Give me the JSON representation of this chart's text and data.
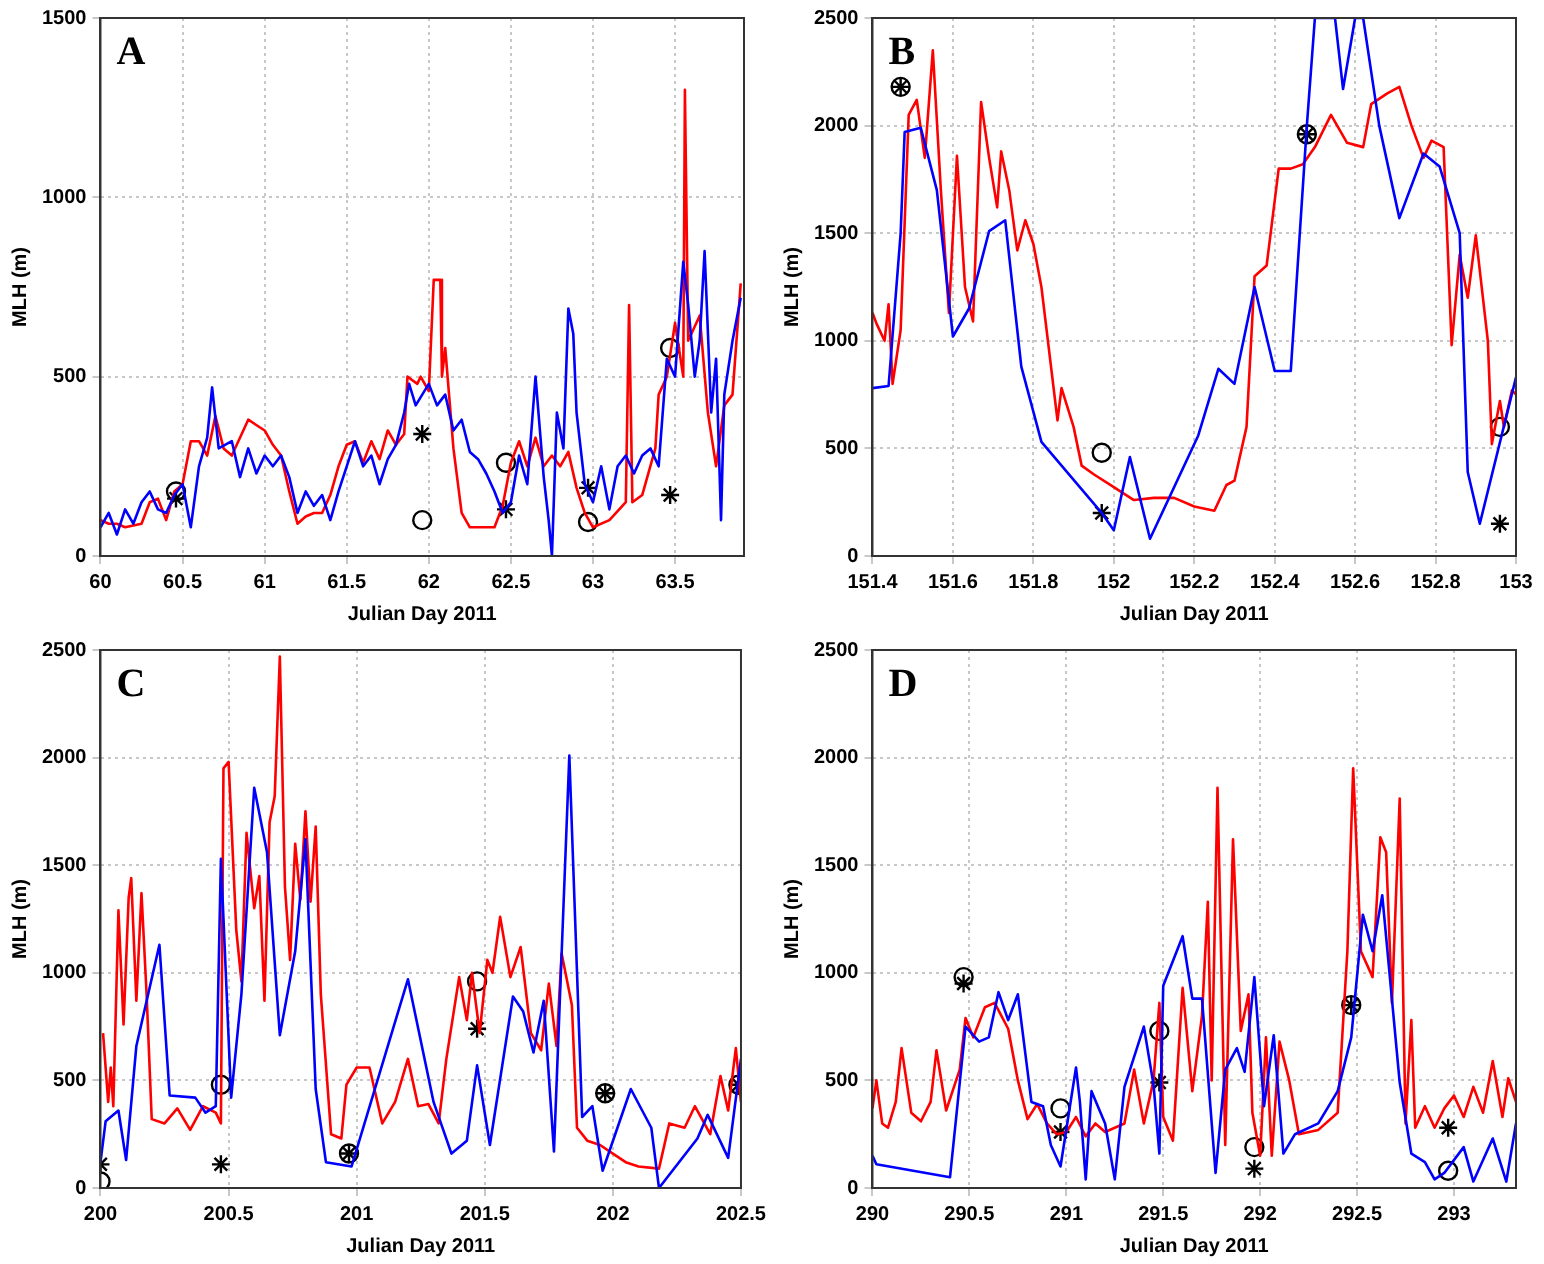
{
  "chart_data": [
    {
      "type": "line",
      "annotations": [
        "A"
      ],
      "xlabel": "Julian Day 2011",
      "ylabel": "MLH (m)",
      "xlim": [
        60,
        63.92
      ],
      "ylim": [
        0,
        1500
      ],
      "xticks": [
        60,
        60.5,
        61,
        61.5,
        62,
        62.5,
        63,
        63.5
      ],
      "yticks": [
        0,
        500,
        1000,
        1500
      ],
      "grid": true,
      "legend": false,
      "series": [
        {
          "type": "line",
          "color": "#0000ff",
          "marker": "none",
          "x": [
            60,
            60.05,
            60.1,
            60.15,
            60.2,
            60.25,
            60.3,
            60.35,
            60.4,
            60.45,
            60.5,
            60.55,
            60.6,
            60.65,
            60.68,
            60.72,
            60.8,
            60.85,
            60.9,
            60.95,
            61,
            61.05,
            61.1,
            61.15,
            61.2,
            61.25,
            61.3,
            61.35,
            61.4,
            61.45,
            61.5,
            61.55,
            61.6,
            61.65,
            61.7,
            61.75,
            61.8,
            61.85,
            61.88,
            61.92,
            62,
            62.05,
            62.1,
            62.15,
            62.2,
            62.25,
            62.3,
            62.35,
            62.4,
            62.45,
            62.5,
            62.55,
            62.6,
            62.63,
            62.65,
            62.7,
            62.73,
            62.75,
            62.78,
            62.82,
            62.85,
            62.88,
            62.9,
            62.95,
            63,
            63.05,
            63.1,
            63.15,
            63.2,
            63.25,
            63.3,
            63.35,
            63.4,
            63.45,
            63.5,
            63.55,
            63.58,
            63.62,
            63.65,
            63.68,
            63.72,
            63.75,
            63.78,
            63.8,
            63.85,
            63.9
          ],
          "values": [
            80,
            120,
            60,
            130,
            90,
            150,
            180,
            130,
            120,
            170,
            200,
            80,
            250,
            330,
            470,
            300,
            320,
            220,
            300,
            230,
            280,
            250,
            280,
            220,
            120,
            180,
            140,
            170,
            100,
            180,
            250,
            320,
            250,
            280,
            200,
            270,
            310,
            400,
            480,
            420,
            480,
            420,
            450,
            350,
            380,
            290,
            270,
            230,
            180,
            120,
            150,
            280,
            200,
            380,
            500,
            220,
            100,
            0,
            400,
            300,
            690,
            620,
            400,
            200,
            150,
            250,
            130,
            250,
            280,
            230,
            280,
            300,
            250,
            550,
            500,
            820,
            700,
            500,
            600,
            850,
            400,
            550,
            100,
            450,
            600,
            720
          ]
        },
        {
          "type": "line",
          "color": "#ff0000",
          "marker": "none",
          "x": [
            60,
            60.05,
            60.1,
            60.15,
            60.25,
            60.3,
            60.35,
            60.4,
            60.45,
            60.5,
            60.55,
            60.6,
            60.65,
            60.7,
            60.75,
            60.8,
            60.9,
            61,
            61.05,
            61.1,
            61.15,
            61.2,
            61.25,
            61.3,
            61.35,
            61.4,
            61.45,
            61.5,
            61.55,
            61.6,
            61.65,
            61.7,
            61.75,
            61.8,
            61.85,
            61.87,
            61.9,
            61.93,
            61.95,
            62,
            62.03,
            62.07,
            62.08,
            62.1,
            62.15,
            62.2,
            62.25,
            62.4,
            62.45,
            62.5,
            62.55,
            62.6,
            62.65,
            62.7,
            62.75,
            62.8,
            62.85,
            62.9,
            62.95,
            63,
            63.1,
            63.2,
            63.22,
            63.24,
            63.3,
            63.38,
            63.4,
            63.45,
            63.5,
            63.55,
            63.56,
            63.58,
            63.65,
            63.7,
            63.75,
            63.8,
            63.85,
            63.9
          ],
          "values": [
            100,
            90,
            90,
            80,
            90,
            150,
            160,
            100,
            180,
            200,
            320,
            320,
            280,
            390,
            300,
            280,
            380,
            350,
            310,
            280,
            180,
            90,
            110,
            120,
            120,
            170,
            250,
            310,
            320,
            260,
            320,
            270,
            350,
            310,
            340,
            500,
            490,
            480,
            500,
            460,
            770,
            770,
            500,
            580,
            300,
            120,
            80,
            80,
            140,
            260,
            320,
            250,
            330,
            250,
            280,
            250,
            290,
            190,
            120,
            80,
            100,
            150,
            700,
            150,
            170,
            300,
            450,
            500,
            650,
            500,
            1300,
            600,
            670,
            400,
            250,
            420,
            450,
            760
          ]
        },
        {
          "type": "scatter",
          "color": "#000000",
          "marker": "circle",
          "x": [
            60.46,
            61.96,
            62.47,
            62.97,
            63.47
          ],
          "values": [
            180,
            100,
            260,
            95,
            580
          ]
        },
        {
          "type": "scatter",
          "color": "#000000",
          "marker": "cross",
          "x": [
            60.46,
            61.96,
            62.47,
            62.97,
            63.47
          ],
          "values": [
            160,
            340,
            130,
            190,
            170
          ]
        }
      ]
    },
    {
      "type": "line",
      "annotations": [
        "B"
      ],
      "xlabel": "Julian Day 2011",
      "ylabel": "MLH (m)",
      "xlim": [
        151.4,
        153
      ],
      "ylim": [
        0,
        2500
      ],
      "xticks": [
        151.4,
        151.6,
        151.8,
        152,
        152.2,
        152.4,
        152.6,
        152.8,
        153
      ],
      "yticks": [
        0,
        500,
        1000,
        1500,
        2000,
        2500
      ],
      "grid": true,
      "legend": false,
      "series": [
        {
          "type": "line",
          "color": "#0000ff",
          "marker": "none",
          "x": [
            151.4,
            151.44,
            151.47,
            151.48,
            151.52,
            151.56,
            151.6,
            151.64,
            151.69,
            151.73,
            151.77,
            151.82,
            151.97,
            152,
            152.04,
            152.09,
            152.21,
            152.26,
            152.3,
            152.35,
            152.4,
            152.44,
            152.48,
            152.5,
            152.55,
            152.57,
            152.6,
            152.62,
            152.66,
            152.71,
            152.77,
            152.81,
            152.86,
            152.88,
            152.91,
            153
          ],
          "values": [
            780,
            790,
            1500,
            1970,
            1990,
            1700,
            1020,
            1150,
            1510,
            1560,
            880,
            530,
            200,
            120,
            460,
            80,
            560,
            870,
            800,
            1250,
            860,
            860,
            2000,
            2500,
            2500,
            2170,
            2500,
            2500,
            2000,
            1570,
            1870,
            1810,
            1500,
            390,
            150,
            830
          ]
        },
        {
          "type": "line",
          "color": "#ff0000",
          "marker": "none",
          "x": [
            151.4,
            151.41,
            151.43,
            151.44,
            151.45,
            151.47,
            151.49,
            151.51,
            151.53,
            151.55,
            151.57,
            151.59,
            151.61,
            151.63,
            151.65,
            151.67,
            151.69,
            151.71,
            151.72,
            151.74,
            151.76,
            151.78,
            151.8,
            151.82,
            151.86,
            151.87,
            151.9,
            151.92,
            151.95,
            152,
            152.05,
            152.1,
            152.15,
            152.2,
            152.25,
            152.28,
            152.3,
            152.33,
            152.35,
            152.38,
            152.41,
            152.44,
            152.47,
            152.5,
            152.54,
            152.58,
            152.62,
            152.64,
            152.68,
            152.71,
            152.74,
            152.77,
            152.79,
            152.82,
            152.84,
            152.86,
            152.88,
            152.9,
            152.93,
            152.94,
            152.96,
            152.97,
            152.99,
            153
          ],
          "values": [
            1130,
            1080,
            1000,
            1170,
            800,
            1050,
            2050,
            2120,
            1850,
            2350,
            1700,
            1130,
            1860,
            1250,
            1090,
            2110,
            1850,
            1620,
            1880,
            1700,
            1420,
            1560,
            1450,
            1250,
            630,
            780,
            600,
            420,
            380,
            320,
            260,
            270,
            270,
            230,
            210,
            330,
            350,
            600,
            1300,
            1350,
            1800,
            1800,
            1820,
            1900,
            2050,
            1920,
            1900,
            2100,
            2150,
            2180,
            2000,
            1850,
            1930,
            1900,
            980,
            1400,
            1200,
            1490,
            1000,
            520,
            720,
            600,
            770,
            750
          ]
        },
        {
          "type": "scatter",
          "color": "#000000",
          "marker": "circle",
          "x": [
            151.47,
            151.97,
            152.48,
            152.96
          ],
          "values": [
            2180,
            480,
            1960,
            600
          ]
        },
        {
          "type": "scatter",
          "color": "#000000",
          "marker": "cross",
          "x": [
            151.47,
            151.97,
            152.48,
            152.96
          ],
          "values": [
            2180,
            200,
            1960,
            150
          ]
        }
      ]
    },
    {
      "type": "line",
      "annotations": [
        "C"
      ],
      "xlabel": "Julian Day 2011",
      "ylabel": "MLH (m)",
      "xlim": [
        200,
        202.5
      ],
      "ylim": [
        0,
        2500
      ],
      "xticks": [
        200,
        200.5,
        201,
        201.5,
        202,
        202.5
      ],
      "yticks": [
        0,
        500,
        1000,
        1500,
        2000,
        2500
      ],
      "grid": true,
      "legend": false,
      "series": [
        {
          "type": "line",
          "color": "#0000ff",
          "marker": "none",
          "x": [
            200,
            200.02,
            200.07,
            200.1,
            200.14,
            200.23,
            200.27,
            200.37,
            200.41,
            200.45,
            200.47,
            200.51,
            200.55,
            200.6,
            200.65,
            200.7,
            200.76,
            200.8,
            200.84,
            200.88,
            200.98,
            201.2,
            201.3,
            201.37,
            201.43,
            201.47,
            201.52,
            201.61,
            201.65,
            201.69,
            201.73,
            201.77,
            201.83,
            201.88,
            201.92,
            201.96,
            202.07,
            202.15,
            202.18,
            202.33,
            202.37,
            202.45,
            202.5
          ],
          "values": [
            120,
            310,
            360,
            130,
            660,
            1130,
            430,
            420,
            350,
            380,
            1530,
            420,
            900,
            1860,
            1560,
            710,
            1100,
            1620,
            460,
            120,
            100,
            970,
            400,
            160,
            220,
            570,
            200,
            890,
            820,
            630,
            870,
            170,
            2010,
            330,
            380,
            80,
            460,
            280,
            0,
            230,
            340,
            140,
            600
          ]
        },
        {
          "type": "line",
          "color": "#ff0000",
          "marker": "none",
          "x": [
            200.01,
            200.03,
            200.04,
            200.05,
            200.07,
            200.09,
            200.11,
            200.12,
            200.14,
            200.16,
            200.18,
            200.2,
            200.25,
            200.3,
            200.35,
            200.4,
            200.45,
            200.47,
            200.48,
            200.5,
            200.53,
            200.55,
            200.57,
            200.6,
            200.62,
            200.64,
            200.66,
            200.68,
            200.7,
            200.72,
            200.74,
            200.76,
            200.78,
            200.8,
            200.82,
            200.84,
            200.86,
            200.9,
            200.94,
            200.96,
            201,
            201.05,
            201.1,
            201.15,
            201.2,
            201.24,
            201.28,
            201.32,
            201.35,
            201.4,
            201.43,
            201.45,
            201.48,
            201.51,
            201.53,
            201.56,
            201.6,
            201.64,
            201.68,
            201.72,
            201.75,
            201.78,
            201.8,
            201.84,
            201.86,
            201.9,
            201.95,
            202,
            202.05,
            202.1,
            202.18,
            202.22,
            202.28,
            202.32,
            202.38,
            202.42,
            202.45,
            202.48,
            202.5
          ],
          "values": [
            720,
            400,
            560,
            380,
            1290,
            760,
            1350,
            1440,
            870,
            1370,
            900,
            320,
            300,
            370,
            270,
            380,
            350,
            300,
            1950,
            1980,
            1200,
            960,
            1650,
            1300,
            1450,
            870,
            1700,
            1820,
            2470,
            1400,
            1060,
            1600,
            1340,
            1750,
            1330,
            1680,
            900,
            250,
            230,
            480,
            560,
            560,
            300,
            400,
            600,
            380,
            390,
            300,
            600,
            980,
            780,
            1000,
            720,
            1060,
            1000,
            1260,
            980,
            1120,
            720,
            640,
            950,
            660,
            1090,
            850,
            280,
            220,
            200,
            160,
            120,
            100,
            90,
            300,
            280,
            380,
            250,
            520,
            360,
            650,
            400
          ]
        },
        {
          "type": "scatter",
          "color": "#000000",
          "marker": "circle",
          "x": [
            200,
            200.47,
            200.97,
            201.47,
            201.97,
            202.49
          ],
          "values": [
            30,
            480,
            160,
            960,
            440,
            480
          ]
        },
        {
          "type": "scatter",
          "color": "#000000",
          "marker": "cross",
          "x": [
            200,
            200.47,
            200.97,
            201.47,
            201.97,
            202.49
          ],
          "values": [
            110,
            110,
            160,
            740,
            440,
            480
          ]
        }
      ]
    },
    {
      "type": "line",
      "annotations": [
        "D"
      ],
      "xlabel": "Julian Day 2011",
      "ylabel": "MLH (m)",
      "xlim": [
        290,
        293.32
      ],
      "ylim": [
        0,
        2500
      ],
      "xticks": [
        290,
        290.5,
        291,
        291.5,
        292,
        292.5,
        293
      ],
      "yticks": [
        0,
        500,
        1000,
        1500,
        2000,
        2500
      ],
      "grid": true,
      "legend": false,
      "series": [
        {
          "type": "line",
          "color": "#0000ff",
          "marker": "none",
          "x": [
            290,
            290.02,
            290.4,
            290.48,
            290.55,
            290.6,
            290.65,
            290.7,
            290.75,
            290.82,
            290.88,
            290.92,
            290.97,
            291.05,
            291.07,
            291.1,
            291.13,
            291.2,
            291.25,
            291.3,
            291.4,
            291.45,
            291.48,
            291.5,
            291.6,
            291.65,
            291.7,
            291.77,
            291.82,
            291.88,
            291.92,
            291.97,
            292.02,
            292.07,
            292.12,
            292.18,
            292.3,
            292.4,
            292.47,
            292.53,
            292.58,
            292.63,
            292.72,
            292.78,
            292.85,
            292.9,
            292.95,
            293.05,
            293.1,
            293.2,
            293.27,
            293.32
          ],
          "values": [
            150,
            110,
            50,
            750,
            680,
            700,
            910,
            780,
            900,
            400,
            380,
            200,
            100,
            560,
            400,
            40,
            450,
            300,
            40,
            470,
            750,
            480,
            160,
            940,
            1170,
            880,
            880,
            70,
            550,
            650,
            540,
            980,
            380,
            710,
            160,
            250,
            300,
            450,
            700,
            1270,
            1100,
            1360,
            490,
            160,
            120,
            40,
            70,
            190,
            30,
            230,
            30,
            300
          ]
        },
        {
          "type": "line",
          "color": "#ff0000",
          "marker": "none",
          "x": [
            290,
            290.02,
            290.05,
            290.08,
            290.12,
            290.15,
            290.2,
            290.25,
            290.3,
            290.33,
            290.38,
            290.45,
            290.48,
            290.52,
            290.58,
            290.63,
            290.7,
            290.75,
            290.8,
            290.85,
            290.9,
            290.95,
            291,
            291.05,
            291.1,
            291.15,
            291.2,
            291.3,
            291.35,
            291.4,
            291.45,
            291.48,
            291.5,
            291.55,
            291.6,
            291.65,
            291.7,
            291.73,
            291.75,
            291.78,
            291.82,
            291.86,
            291.9,
            291.94,
            291.96,
            292,
            292.03,
            292.06,
            292.1,
            292.15,
            292.2,
            292.3,
            292.4,
            292.45,
            292.48,
            292.52,
            292.58,
            292.62,
            292.65,
            292.68,
            292.72,
            292.75,
            292.78,
            292.8,
            292.85,
            292.9,
            292.95,
            293,
            293.05,
            293.1,
            293.15,
            293.2,
            293.25,
            293.28,
            293.32
          ],
          "values": [
            370,
            500,
            300,
            280,
            400,
            650,
            350,
            310,
            400,
            640,
            360,
            550,
            790,
            700,
            840,
            860,
            740,
            500,
            320,
            390,
            300,
            250,
            260,
            330,
            240,
            300,
            260,
            300,
            550,
            300,
            500,
            860,
            330,
            220,
            930,
            450,
            800,
            1330,
            500,
            1860,
            200,
            1620,
            730,
            900,
            350,
            150,
            700,
            150,
            680,
            500,
            250,
            270,
            350,
            1100,
            1950,
            1100,
            980,
            1630,
            1560,
            860,
            1810,
            300,
            780,
            280,
            380,
            280,
            370,
            430,
            330,
            470,
            350,
            590,
            330,
            510,
            400
          ]
        },
        {
          "type": "scatter",
          "color": "#000000",
          "marker": "circle",
          "x": [
            290.47,
            290.97,
            291.48,
            291.97,
            292.47,
            292.97
          ],
          "values": [
            980,
            370,
            730,
            190,
            850,
            80
          ]
        },
        {
          "type": "scatter",
          "color": "#000000",
          "marker": "cross",
          "x": [
            290.47,
            290.97,
            291.48,
            291.97,
            292.47,
            292.97
          ],
          "values": [
            950,
            260,
            490,
            90,
            850,
            280
          ]
        }
      ]
    }
  ]
}
